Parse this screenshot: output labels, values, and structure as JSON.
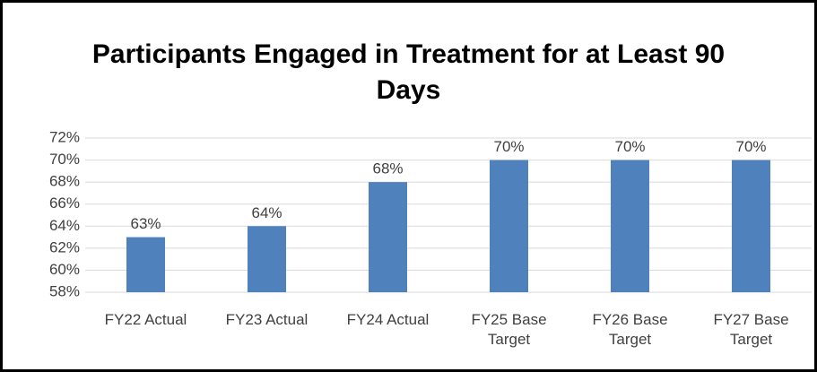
{
  "chart_data": {
    "type": "bar",
    "title": "Participants Engaged in Treatment for at Least 90 Days",
    "categories": [
      "FY22 Actual",
      "FY23 Actual",
      "FY24 Actual",
      "FY25 Base Target",
      "FY26 Base Target",
      "FY27 Base Target"
    ],
    "values": [
      63,
      64,
      68,
      70,
      70,
      70
    ],
    "value_labels": [
      "63%",
      "64%",
      "68%",
      "70%",
      "70%",
      "70%"
    ],
    "color": "#4f81bd",
    "ylim": [
      58,
      72
    ],
    "yticks": [
      {
        "value": 58,
        "label": "58%"
      },
      {
        "value": 60,
        "label": "60%"
      },
      {
        "value": 62,
        "label": "62%"
      },
      {
        "value": 64,
        "label": "64%"
      },
      {
        "value": 66,
        "label": "66%"
      },
      {
        "value": 68,
        "label": "68%"
      },
      {
        "value": 70,
        "label": "70%"
      },
      {
        "value": 72,
        "label": "72%"
      }
    ],
    "grid": true
  }
}
